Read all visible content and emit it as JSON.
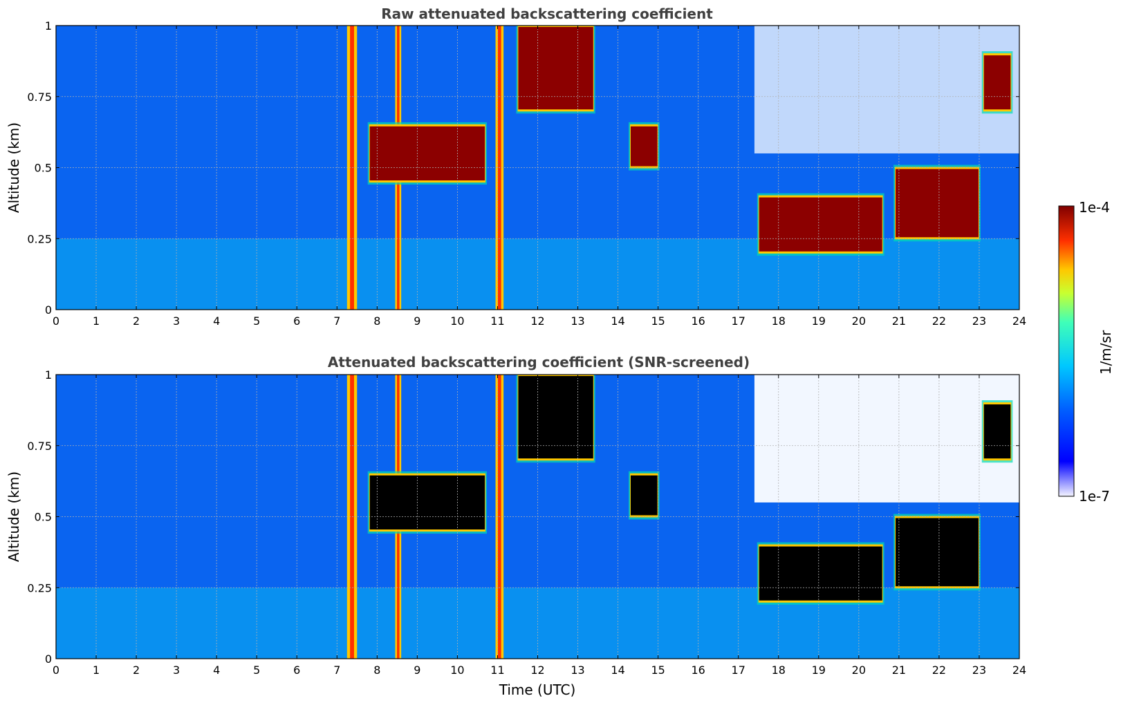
{
  "chart_data": [
    {
      "type": "heatmap",
      "title": "Raw attenuated backscattering coefficient",
      "xlabel": "",
      "ylabel": "Altitude (km)",
      "xlim": [
        0,
        24
      ],
      "ylim": [
        0,
        1
      ],
      "x_ticks": [
        "0",
        "1",
        "2",
        "3",
        "4",
        "5",
        "6",
        "7",
        "8",
        "9",
        "10",
        "11",
        "12",
        "13",
        "14",
        "15",
        "16",
        "17",
        "18",
        "19",
        "20",
        "21",
        "22",
        "23",
        "24"
      ],
      "y_ticks": [
        "0",
        "0.25",
        "0.5",
        "0.75",
        "1"
      ],
      "grid": true,
      "color_scale": "log",
      "features": [
        {
          "kind": "precipitation",
          "t_start": 7.25,
          "t_end": 7.5,
          "alt_bottom": 0.0,
          "alt_top": 1.0
        },
        {
          "kind": "precipitation",
          "t_start": 8.45,
          "t_end": 8.6,
          "alt_bottom": 0.0,
          "alt_top": 1.0
        },
        {
          "kind": "precipitation",
          "t_start": 10.95,
          "t_end": 11.15,
          "alt_bottom": 0.0,
          "alt_top": 1.0
        },
        {
          "kind": "cloud_layer",
          "t_start": 7.8,
          "t_end": 10.7,
          "alt_bottom": 0.45,
          "alt_top": 0.65
        },
        {
          "kind": "cloud_layer",
          "t_start": 11.5,
          "t_end": 13.4,
          "alt_bottom": 0.7,
          "alt_top": 1.0
        },
        {
          "kind": "cloud_layer",
          "t_start": 14.3,
          "t_end": 15.0,
          "alt_bottom": 0.5,
          "alt_top": 0.65
        },
        {
          "kind": "cloud_layer",
          "t_start": 17.5,
          "t_end": 20.6,
          "alt_bottom": 0.2,
          "alt_top": 0.4
        },
        {
          "kind": "cloud_layer",
          "t_start": 20.9,
          "t_end": 23.0,
          "alt_bottom": 0.25,
          "alt_top": 0.5
        },
        {
          "kind": "cloud_layer",
          "t_start": 23.1,
          "t_end": 23.8,
          "alt_bottom": 0.7,
          "alt_top": 0.9
        }
      ]
    },
    {
      "type": "heatmap",
      "title": "Attenuated backscattering coefficient (SNR-screened)",
      "xlabel": "Time (UTC)",
      "ylabel": "Altitude (km)",
      "xlim": [
        0,
        24
      ],
      "ylim": [
        0,
        1
      ],
      "x_ticks": [
        "0",
        "1",
        "2",
        "3",
        "4",
        "5",
        "6",
        "7",
        "8",
        "9",
        "10",
        "11",
        "12",
        "13",
        "14",
        "15",
        "16",
        "17",
        "18",
        "19",
        "20",
        "21",
        "22",
        "23",
        "24"
      ],
      "y_ticks": [
        "0",
        "0.25",
        "0.5",
        "0.75",
        "1"
      ],
      "grid": true,
      "color_scale": "log",
      "features": [
        {
          "kind": "precipitation",
          "t_start": 7.25,
          "t_end": 7.5,
          "alt_bottom": 0.0,
          "alt_top": 1.0
        },
        {
          "kind": "precipitation",
          "t_start": 8.45,
          "t_end": 8.6,
          "alt_bottom": 0.0,
          "alt_top": 1.0
        },
        {
          "kind": "precipitation",
          "t_start": 10.95,
          "t_end": 11.15,
          "alt_bottom": 0.0,
          "alt_top": 1.0
        },
        {
          "kind": "cloud_layer",
          "t_start": 7.8,
          "t_end": 10.7,
          "alt_bottom": 0.45,
          "alt_top": 0.65
        },
        {
          "kind": "cloud_layer",
          "t_start": 11.5,
          "t_end": 13.4,
          "alt_bottom": 0.7,
          "alt_top": 1.0
        },
        {
          "kind": "cloud_layer",
          "t_start": 14.3,
          "t_end": 15.0,
          "alt_bottom": 0.5,
          "alt_top": 0.65
        },
        {
          "kind": "cloud_layer",
          "t_start": 17.5,
          "t_end": 20.6,
          "alt_bottom": 0.2,
          "alt_top": 0.4
        },
        {
          "kind": "cloud_layer",
          "t_start": 20.9,
          "t_end": 23.0,
          "alt_bottom": 0.25,
          "alt_top": 0.5
        },
        {
          "kind": "cloud_layer",
          "t_start": 23.1,
          "t_end": 23.8,
          "alt_bottom": 0.7,
          "alt_top": 0.9
        }
      ]
    }
  ],
  "colorbar": {
    "label": "1/m/sr",
    "max_label": "1e-4",
    "min_label": "1e-7",
    "colormap": "jet"
  },
  "colors": {
    "background": "#0a64f0",
    "low": "#1e3cff",
    "boundary_layer": "#0ab4f0",
    "mid": "#00dcb4",
    "high": "#ffc800",
    "saturated": "#8c0000",
    "screened_saturated": "#000000",
    "title_text": "#404040"
  }
}
